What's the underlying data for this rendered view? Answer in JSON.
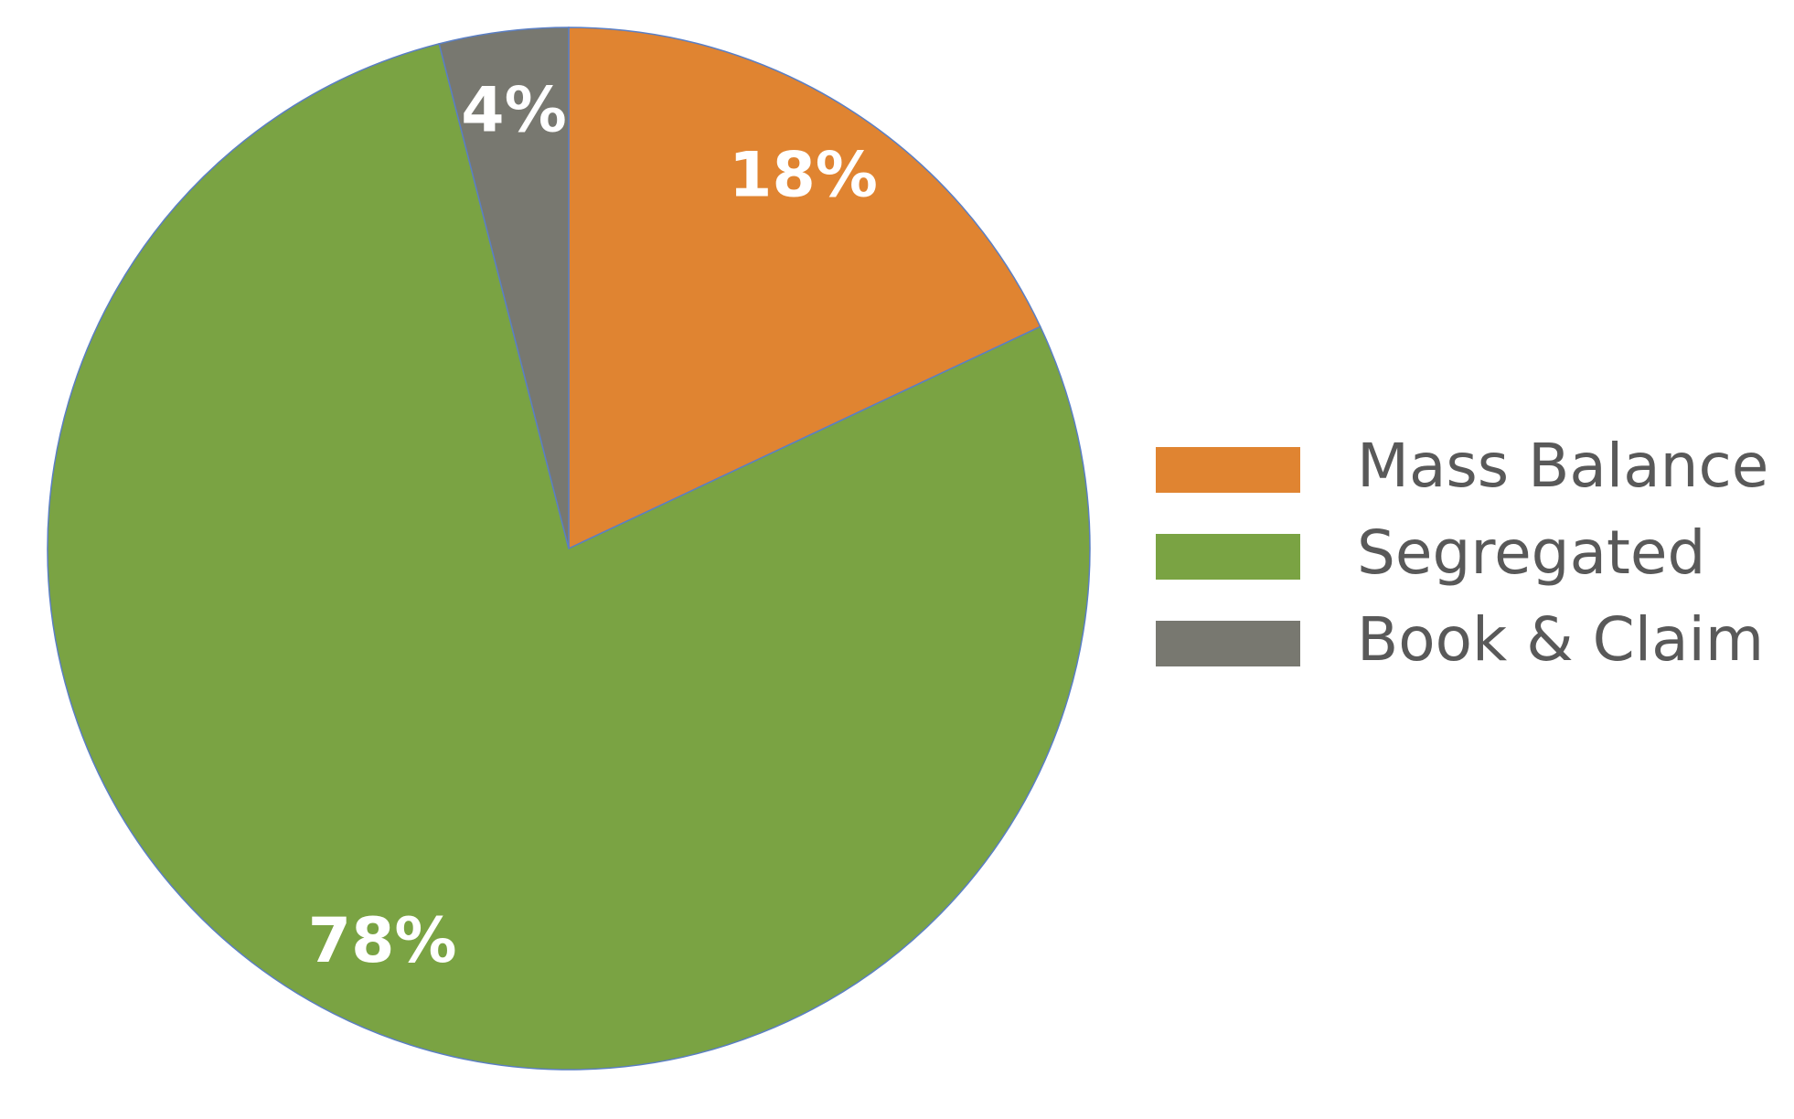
{
  "chart_data": {
    "type": "pie",
    "categories": [
      "Mass Balance",
      "Segregated",
      "Book & Claim"
    ],
    "values": [
      18,
      78,
      4
    ],
    "value_labels": [
      "18%",
      "78%",
      "4%"
    ],
    "colors": [
      "#e08431",
      "#7aa343",
      "#787870"
    ],
    "legend": "right"
  }
}
